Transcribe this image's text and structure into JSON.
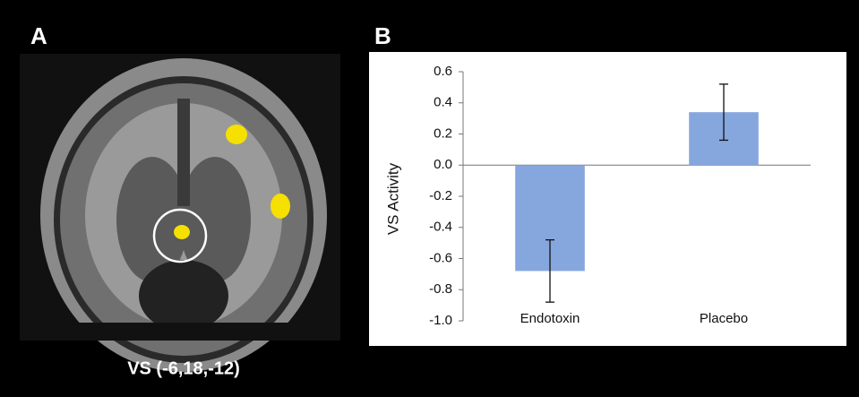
{
  "panel_a": {
    "label": "A",
    "caption": "VS (-6,18,-12)"
  },
  "panel_b": {
    "label": "B"
  },
  "chart_data": {
    "type": "bar",
    "ylabel": "VS Activity",
    "categories": [
      "Endotoxin",
      "Placebo"
    ],
    "values": [
      -0.68,
      0.34
    ],
    "errors": [
      0.2,
      0.18
    ],
    "color": "#86a6de",
    "ylim": [
      -1.0,
      0.6
    ],
    "yticks": [
      0.6,
      0.4,
      0.2,
      {
        "value": 0,
        "label": "0.0"
      },
      -0.2,
      -0.4,
      -0.6,
      -0.8,
      {
        "value": -1,
        "label": "-1.0"
      }
    ]
  }
}
